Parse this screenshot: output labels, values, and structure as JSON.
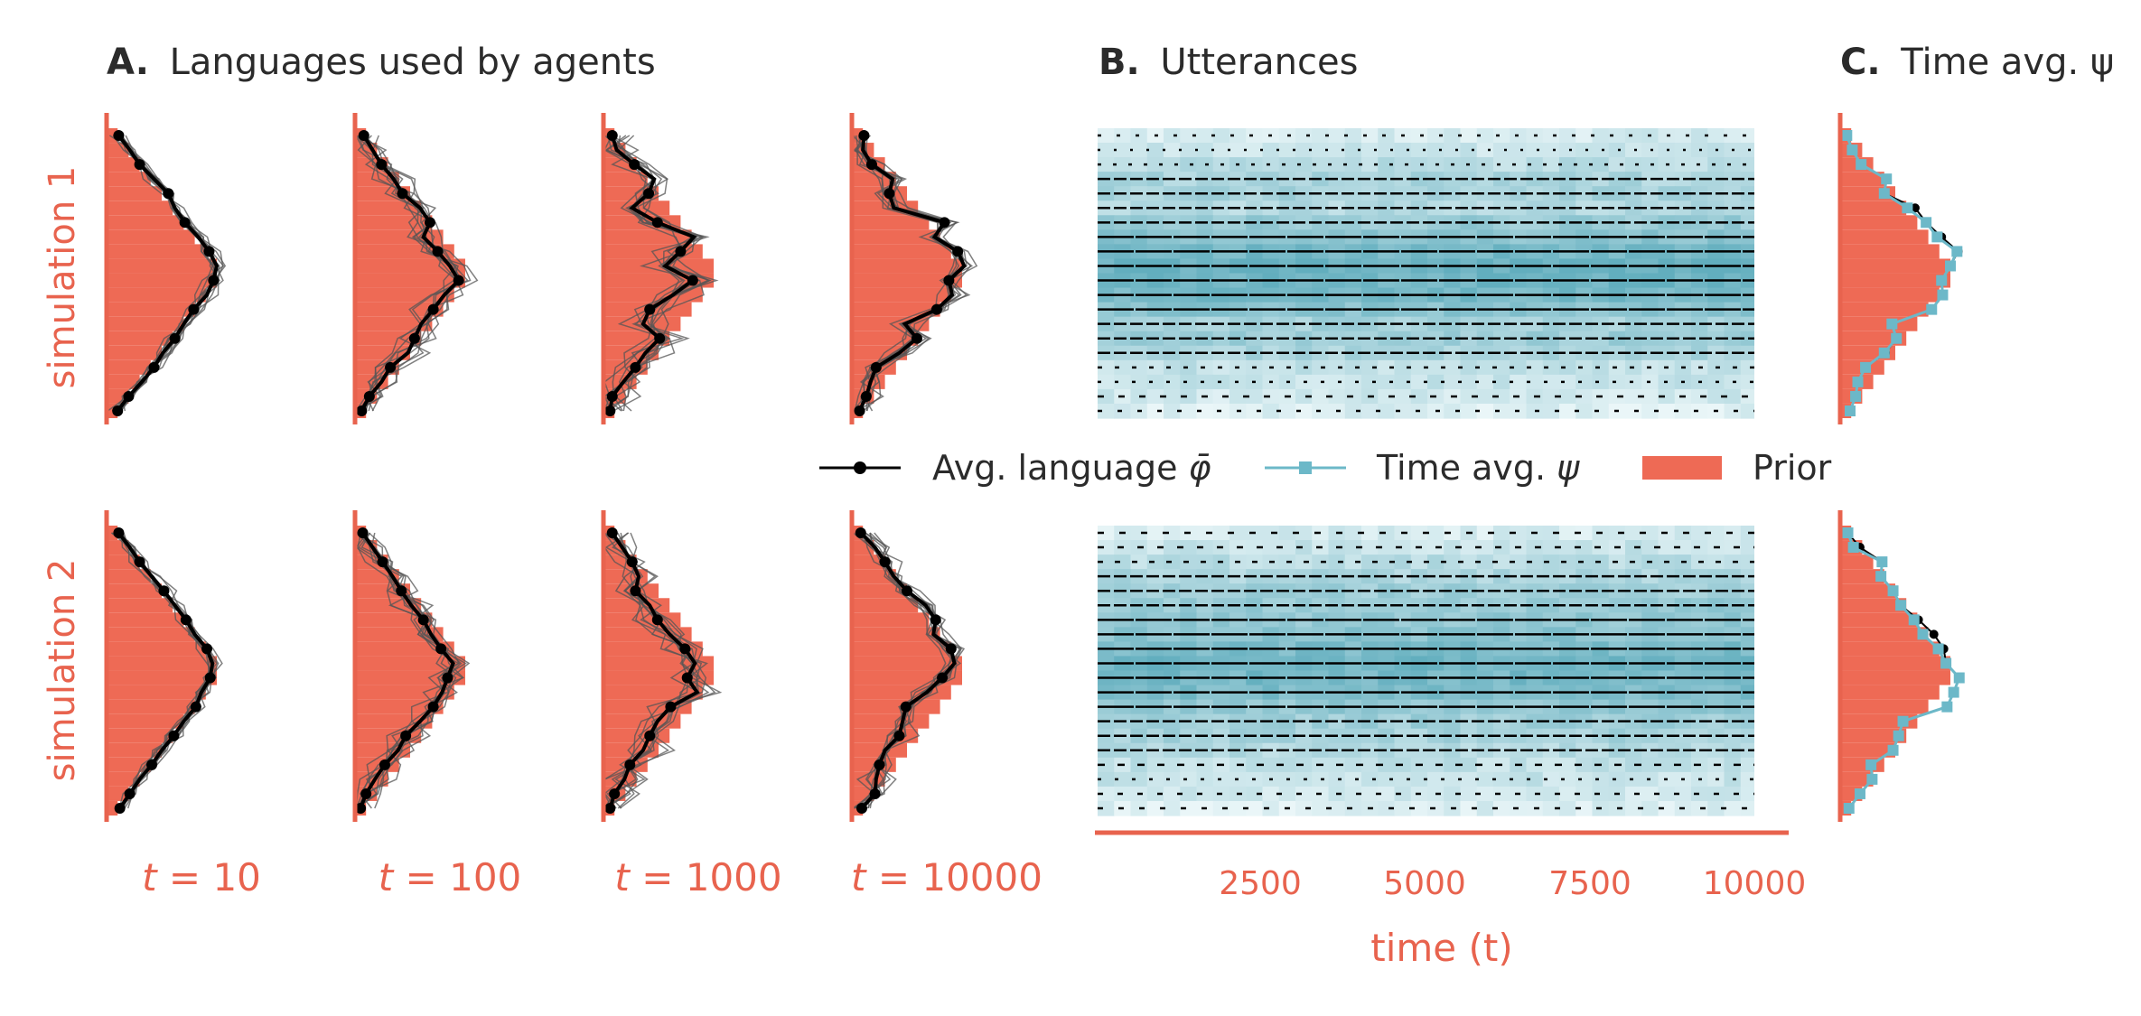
{
  "titles": {
    "a_letter": "A.",
    "a_text": "Languages used by agents",
    "b_letter": "B.",
    "b_text": "Utterances",
    "c_letter": "C.",
    "c_text": "Time avg. ψ"
  },
  "row_labels": [
    "simulation 1",
    "simulation 2"
  ],
  "colors": {
    "prior": "#ee6a55",
    "axis": "#e8634e",
    "avg_language": "#000000",
    "agents": "#555555",
    "time_avg": "#6cb8c8",
    "heat_high": "#62aebe",
    "heat_low": "#eaf6f8"
  },
  "chart_data": [
    {
      "type": "bar",
      "panel": "A",
      "title": "Languages used by agents",
      "orientation": "horizontal",
      "categories_count": 20,
      "column_labels": [
        {
          "t": "t",
          "eq": " = 10"
        },
        {
          "t": "t",
          "eq": " = 100"
        },
        {
          "t": "t",
          "eq": " = 1000"
        },
        {
          "t": "t",
          "eq": " = 10000"
        }
      ],
      "prior": [
        1,
        2,
        3,
        4,
        5,
        6,
        7,
        8,
        9,
        10,
        10,
        9,
        8,
        7,
        6,
        5,
        4,
        3,
        2,
        1
      ],
      "series": [
        {
          "name": "Avg. language φ̄",
          "simulation": 1,
          "t": 10,
          "values": [
            1.1,
            2.1,
            3.0,
            4.3,
            5.6,
            6.2,
            7.1,
            8.3,
            9.3,
            10.0,
            9.7,
            9.1,
            7.9,
            7.0,
            6.2,
            5.1,
            4.3,
            3.2,
            2.0,
            1.0
          ]
        },
        {
          "name": "Avg. language φ̄",
          "simulation": 1,
          "t": 100,
          "values": [
            0.8,
            1.6,
            2.4,
            3.5,
            4.3,
            5.9,
            6.8,
            6.2,
            7.5,
            8.6,
            9.4,
            8.1,
            7.1,
            6.0,
            5.4,
            4.8,
            3.2,
            2.4,
            1.3,
            0.6
          ]
        },
        {
          "name": "Avg. language φ̄",
          "simulation": 1,
          "t": 1000,
          "values": [
            0.8,
            1.2,
            2.8,
            4.6,
            4.1,
            2.6,
            4.9,
            8.2,
            7.0,
            5.6,
            8.1,
            6.3,
            4.2,
            3.6,
            5.1,
            3.8,
            2.9,
            1.8,
            0.8,
            0.6
          ]
        },
        {
          "name": "Avg. language φ̄",
          "simulation": 1,
          "t": 10000,
          "values": [
            1.1,
            1.0,
            1.8,
            3.7,
            3.4,
            3.8,
            8.4,
            7.5,
            9.6,
            10.2,
            8.8,
            9.1,
            7.7,
            4.8,
            5.9,
            4.3,
            2.2,
            1.7,
            1.3,
            0.7
          ]
        },
        {
          "name": "Avg. language φ̄",
          "simulation": 2,
          "t": 10,
          "values": [
            1.1,
            2.1,
            3.0,
            4.1,
            5.2,
            6.2,
            7.2,
            8.0,
            9.1,
            9.6,
            9.4,
            8.6,
            8.1,
            7.0,
            6.1,
            5.0,
            4.1,
            3.0,
            2.1,
            1.2
          ]
        },
        {
          "name": "Avg. language φ̄",
          "simulation": 2,
          "t": 100,
          "values": [
            0.7,
            1.6,
            2.5,
            3.4,
            4.2,
            5.1,
            6.2,
            6.9,
            7.8,
            8.9,
            8.4,
            7.9,
            7.1,
            5.9,
            4.6,
            3.9,
            2.7,
            1.8,
            1.0,
            0.5
          ]
        },
        {
          "name": "Avg. language φ̄",
          "simulation": 2,
          "t": 1000,
          "values": [
            0.8,
            1.7,
            2.6,
            3.2,
            2.9,
            4.2,
            4.9,
            6.0,
            7.4,
            8.3,
            7.6,
            8.5,
            6.1,
            4.9,
            4.2,
            3.6,
            2.4,
            1.9,
            1.0,
            0.6
          ]
        },
        {
          "name": "Avg. language φ̄",
          "simulation": 2,
          "t": 10000,
          "values": [
            0.8,
            2.1,
            3.0,
            3.8,
            5.0,
            6.7,
            7.6,
            7.4,
            9.0,
            9.3,
            8.2,
            6.8,
            4.9,
            4.6,
            4.3,
            3.0,
            2.5,
            2.2,
            2.1,
            0.9
          ]
        }
      ]
    },
    {
      "type": "heatmap",
      "panel": "B",
      "title": "Utterances",
      "xlabel": "time (t)",
      "xticks": [
        2500,
        5000,
        7500,
        10000
      ],
      "xlim": [
        0,
        10000
      ],
      "rows": 20,
      "row_intensity": {
        "simulation 1": [
          0.15,
          0.25,
          0.35,
          0.45,
          0.5,
          0.4,
          0.6,
          0.7,
          0.85,
          0.95,
          0.9,
          0.85,
          0.7,
          0.5,
          0.55,
          0.45,
          0.3,
          0.25,
          0.2,
          0.1
        ],
        "simulation 2": [
          0.15,
          0.25,
          0.35,
          0.45,
          0.55,
          0.6,
          0.65,
          0.7,
          0.8,
          0.9,
          0.85,
          0.8,
          0.65,
          0.55,
          0.5,
          0.4,
          0.3,
          0.25,
          0.2,
          0.1
        ]
      }
    },
    {
      "type": "bar",
      "panel": "C",
      "title": "Time avg. ψ",
      "orientation": "horizontal",
      "categories_count": 20,
      "prior": [
        1,
        2,
        3,
        4,
        5,
        6,
        7,
        8,
        9,
        10,
        10,
        9,
        8,
        7,
        6,
        5,
        4,
        3,
        2,
        1
      ],
      "series": [
        {
          "name": "Time avg. ψ",
          "simulation": 1,
          "values": [
            0.6,
            1.1,
            1.9,
            4.2,
            4.0,
            6.1,
            7.8,
            8.8,
            10.6,
            10.0,
            9.2,
            9.3,
            8.3,
            4.7,
            5.1,
            4.0,
            2.3,
            1.6,
            1.4,
            0.9
          ]
        },
        {
          "name": "Avg. language φ̄",
          "simulation": 1,
          "values": [
            0.6,
            1.1,
            1.9,
            4.2,
            4.0,
            6.8,
            7.8,
            9.2,
            10.7,
            10.0,
            9.2,
            9.3,
            8.3,
            4.7,
            5.1,
            4.1,
            2.3,
            1.6,
            1.4,
            0.9
          ]
        },
        {
          "name": "Time avg. ψ",
          "simulation": 2,
          "values": [
            0.7,
            1.2,
            3.8,
            3.7,
            4.8,
            5.5,
            6.7,
            7.5,
            8.9,
            9.6,
            10.8,
            10.3,
            9.7,
            5.7,
            5.3,
            4.8,
            2.8,
            2.9,
            1.8,
            0.8
          ]
        },
        {
          "name": "Avg. language φ̄",
          "simulation": 2,
          "values": [
            0.7,
            1.8,
            3.8,
            3.7,
            4.8,
            5.5,
            7.1,
            8.5,
            9.4,
            9.6,
            10.8,
            10.3,
            9.7,
            5.7,
            5.3,
            4.8,
            2.8,
            2.9,
            1.8,
            0.8
          ]
        }
      ]
    }
  ],
  "legend": [
    {
      "key": "avg",
      "label_prefix": "Avg. language ",
      "label_symbol": "φ̄"
    },
    {
      "key": "time",
      "label_prefix": "Time avg. ",
      "label_symbol": "ψ"
    },
    {
      "key": "prior",
      "label_prefix": "Prior",
      "label_symbol": ""
    }
  ]
}
